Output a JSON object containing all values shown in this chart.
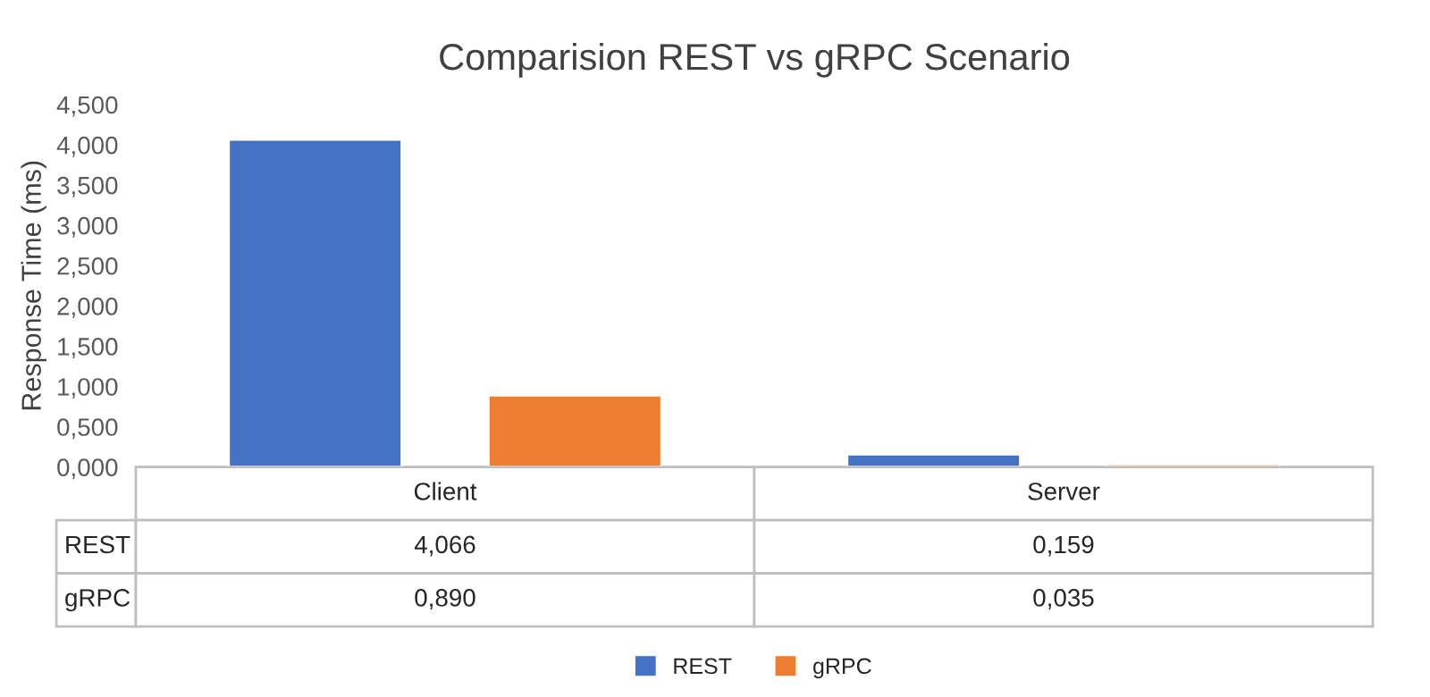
{
  "chart_data": {
    "type": "bar",
    "title": "Comparision REST vs gRPC Scenario",
    "ylabel": "Response Time (ms)",
    "categories": [
      "Client",
      "Server"
    ],
    "series": [
      {
        "name": "REST",
        "color": "#4472c4",
        "values": [
          4.066,
          0.159
        ],
        "value_labels": [
          "4,066",
          "0,159"
        ]
      },
      {
        "name": "gRPC",
        "color": "#ed7d31",
        "values": [
          0.89,
          0.035
        ],
        "value_labels": [
          "0,890",
          "0,035"
        ]
      }
    ],
    "ylim": [
      0,
      4.5
    ],
    "yticks": [
      {
        "value": 0,
        "label": "0,000"
      },
      {
        "value": 0.5,
        "label": "0,500"
      },
      {
        "value": 1,
        "label": "1,000"
      },
      {
        "value": 1.5,
        "label": "1,500"
      },
      {
        "value": 2,
        "label": "2,000"
      },
      {
        "value": 2.5,
        "label": "2,500"
      },
      {
        "value": 3,
        "label": "3,000"
      },
      {
        "value": 3.5,
        "label": "3,500"
      },
      {
        "value": 4,
        "label": "4,000"
      },
      {
        "value": 4.5,
        "label": "4,500"
      }
    ],
    "grid": false,
    "legend": "bottom"
  }
}
